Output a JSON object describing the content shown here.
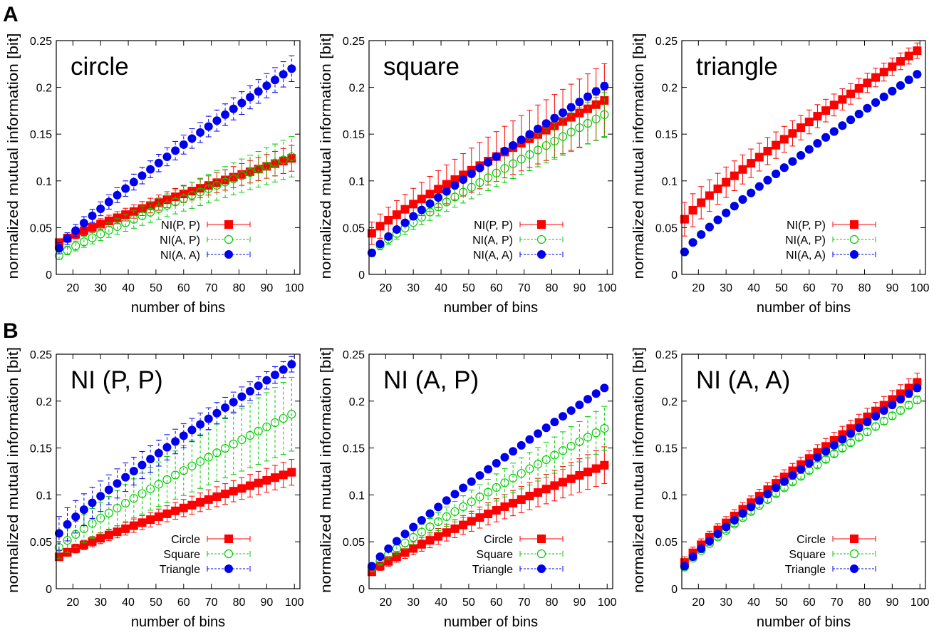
{
  "figure": {
    "panel_labels": [
      "A",
      "B"
    ]
  },
  "chart_data": [
    {
      "type": "line",
      "title": "circle",
      "xlabel": "number of bins",
      "ylabel": "normalized mutual information [bit]",
      "xlim": [
        14,
        102
      ],
      "ylim": [
        0,
        0.25
      ],
      "xticks": [
        "20",
        "30",
        "40",
        "50",
        "60",
        "70",
        "80",
        "90",
        "100"
      ],
      "yticks": [
        "0",
        "0.05",
        "0.1",
        "0.15",
        "0.2",
        "0.25"
      ],
      "legend_position": "bottom-right",
      "series": [
        {
          "name": "NI(P, P)",
          "color": "#ff0000",
          "marker": "filled-square",
          "y_start": 0.034,
          "y_end": 0.126,
          "err_start": 0.004,
          "err_end": 0.014
        },
        {
          "name": "NI(A, P)",
          "color": "#00cc00",
          "marker": "open-circle",
          "y_start": 0.02,
          "y_end": 0.128,
          "err_start": 0.004,
          "err_end": 0.022
        },
        {
          "name": "NI(A, A)",
          "color": "#0000ee",
          "marker": "filled-circle",
          "y_start": 0.028,
          "y_end": 0.224,
          "err_start": 0.006,
          "err_end": 0.014
        }
      ]
    },
    {
      "type": "line",
      "title": "square",
      "xlabel": "number of bins",
      "ylabel": "normalized mutual information [bit]",
      "xlim": [
        14,
        102
      ],
      "ylim": [
        0,
        0.25
      ],
      "xticks": [
        "20",
        "30",
        "40",
        "50",
        "60",
        "70",
        "80",
        "90",
        "100"
      ],
      "yticks": [
        "0",
        "0.05",
        "0.1",
        "0.15",
        "0.2",
        "0.25"
      ],
      "legend_position": "bottom-right",
      "series": [
        {
          "name": "NI(P, P)",
          "color": "#ff0000",
          "marker": "filled-square",
          "y_start": 0.044,
          "y_end": 0.189,
          "err_start": 0.012,
          "err_end": 0.04
        },
        {
          "name": "NI(A, P)",
          "color": "#00cc00",
          "marker": "open-circle",
          "y_start": 0.023,
          "y_end": 0.174,
          "err_start": 0.004,
          "err_end": 0.024
        },
        {
          "name": "NI(A, A)",
          "color": "#0000ee",
          "marker": "filled-circle",
          "y_start": 0.023,
          "y_end": 0.205,
          "err_start": 0.002,
          "err_end": 0.004
        }
      ]
    },
    {
      "type": "line",
      "title": "triangle",
      "xlabel": "number of bins",
      "ylabel": "normalized mutual information [bit]",
      "xlim": [
        14,
        102
      ],
      "ylim": [
        0,
        0.25
      ],
      "xticks": [
        "20",
        "30",
        "40",
        "50",
        "60",
        "70",
        "80",
        "90",
        "100"
      ],
      "yticks": [
        "0",
        "0.05",
        "0.1",
        "0.15",
        "0.2",
        "0.25"
      ],
      "legend_position": "bottom-right",
      "series": [
        {
          "name": "NI(P, P)",
          "color": "#ff0000",
          "marker": "filled-square",
          "y_start": 0.059,
          "y_end": 0.243,
          "err_start": 0.018,
          "err_end": 0.008
        },
        {
          "name": "NI(A, P)",
          "color": "#00cc00",
          "marker": "open-circle",
          "y_start": 0.024,
          "y_end": 0.218,
          "err_start": 0.002,
          "err_end": 0.003
        },
        {
          "name": "NI(A, A)",
          "color": "#0000ee",
          "marker": "filled-circle",
          "y_start": 0.024,
          "y_end": 0.218,
          "err_start": 0.001,
          "err_end": 0.002
        }
      ]
    },
    {
      "type": "line",
      "title": "NI (P, P)",
      "xlabel": "number of bins",
      "ylabel": "normalized mutual information [bit]",
      "xlim": [
        14,
        102
      ],
      "ylim": [
        0,
        0.25
      ],
      "xticks": [
        "20",
        "30",
        "40",
        "50",
        "60",
        "70",
        "80",
        "90",
        "100"
      ],
      "yticks": [
        "0",
        "0.05",
        "0.1",
        "0.15",
        "0.2",
        "0.25"
      ],
      "legend_position": "bottom-right",
      "series": [
        {
          "name": "Circle",
          "color": "#ff0000",
          "marker": "filled-square",
          "y_start": 0.034,
          "y_end": 0.126,
          "err_start": 0.004,
          "err_end": 0.014
        },
        {
          "name": "Square",
          "color": "#00cc00",
          "marker": "open-circle",
          "y_start": 0.044,
          "y_end": 0.189,
          "err_start": 0.012,
          "err_end": 0.04
        },
        {
          "name": "Triangle",
          "color": "#0000ee",
          "marker": "filled-circle",
          "y_start": 0.059,
          "y_end": 0.243,
          "err_start": 0.018,
          "err_end": 0.008
        }
      ]
    },
    {
      "type": "line",
      "title": "NI (A, P)",
      "xlabel": "number of bins",
      "ylabel": "normalized mutual information [bit]",
      "xlim": [
        14,
        102
      ],
      "ylim": [
        0,
        0.25
      ],
      "xticks": [
        "20",
        "30",
        "40",
        "50",
        "60",
        "70",
        "80",
        "90",
        "100"
      ],
      "yticks": [
        "0",
        "0.05",
        "0.1",
        "0.15",
        "0.2",
        "0.25"
      ],
      "legend_position": "bottom-right",
      "series": [
        {
          "name": "Circle",
          "color": "#ff0000",
          "marker": "filled-square",
          "y_start": 0.018,
          "y_end": 0.134,
          "err_start": 0.004,
          "err_end": 0.02
        },
        {
          "name": "Square",
          "color": "#00cc00",
          "marker": "open-circle",
          "y_start": 0.022,
          "y_end": 0.174,
          "err_start": 0.004,
          "err_end": 0.024
        },
        {
          "name": "Triangle",
          "color": "#0000ee",
          "marker": "filled-circle",
          "y_start": 0.024,
          "y_end": 0.218,
          "err_start": 0.002,
          "err_end": 0.002
        }
      ]
    },
    {
      "type": "line",
      "title": "NI (A, A)",
      "xlabel": "number of bins",
      "ylabel": "normalized mutual information [bit]",
      "xlim": [
        14,
        102
      ],
      "ylim": [
        0,
        0.25
      ],
      "xticks": [
        "20",
        "30",
        "40",
        "50",
        "60",
        "70",
        "80",
        "90",
        "100"
      ],
      "yticks": [
        "0",
        "0.05",
        "0.1",
        "0.15",
        "0.2",
        "0.25"
      ],
      "legend_position": "bottom-right",
      "series": [
        {
          "name": "Circle",
          "color": "#ff0000",
          "marker": "filled-square",
          "y_start": 0.028,
          "y_end": 0.224,
          "err_start": 0.006,
          "err_end": 0.01
        },
        {
          "name": "Square",
          "color": "#00cc00",
          "marker": "open-circle",
          "y_start": 0.023,
          "y_end": 0.205,
          "err_start": 0.002,
          "err_end": 0.004
        },
        {
          "name": "Triangle",
          "color": "#0000ee",
          "marker": "filled-circle",
          "y_start": 0.024,
          "y_end": 0.218,
          "err_start": 0.001,
          "err_end": 0.002
        }
      ]
    }
  ]
}
